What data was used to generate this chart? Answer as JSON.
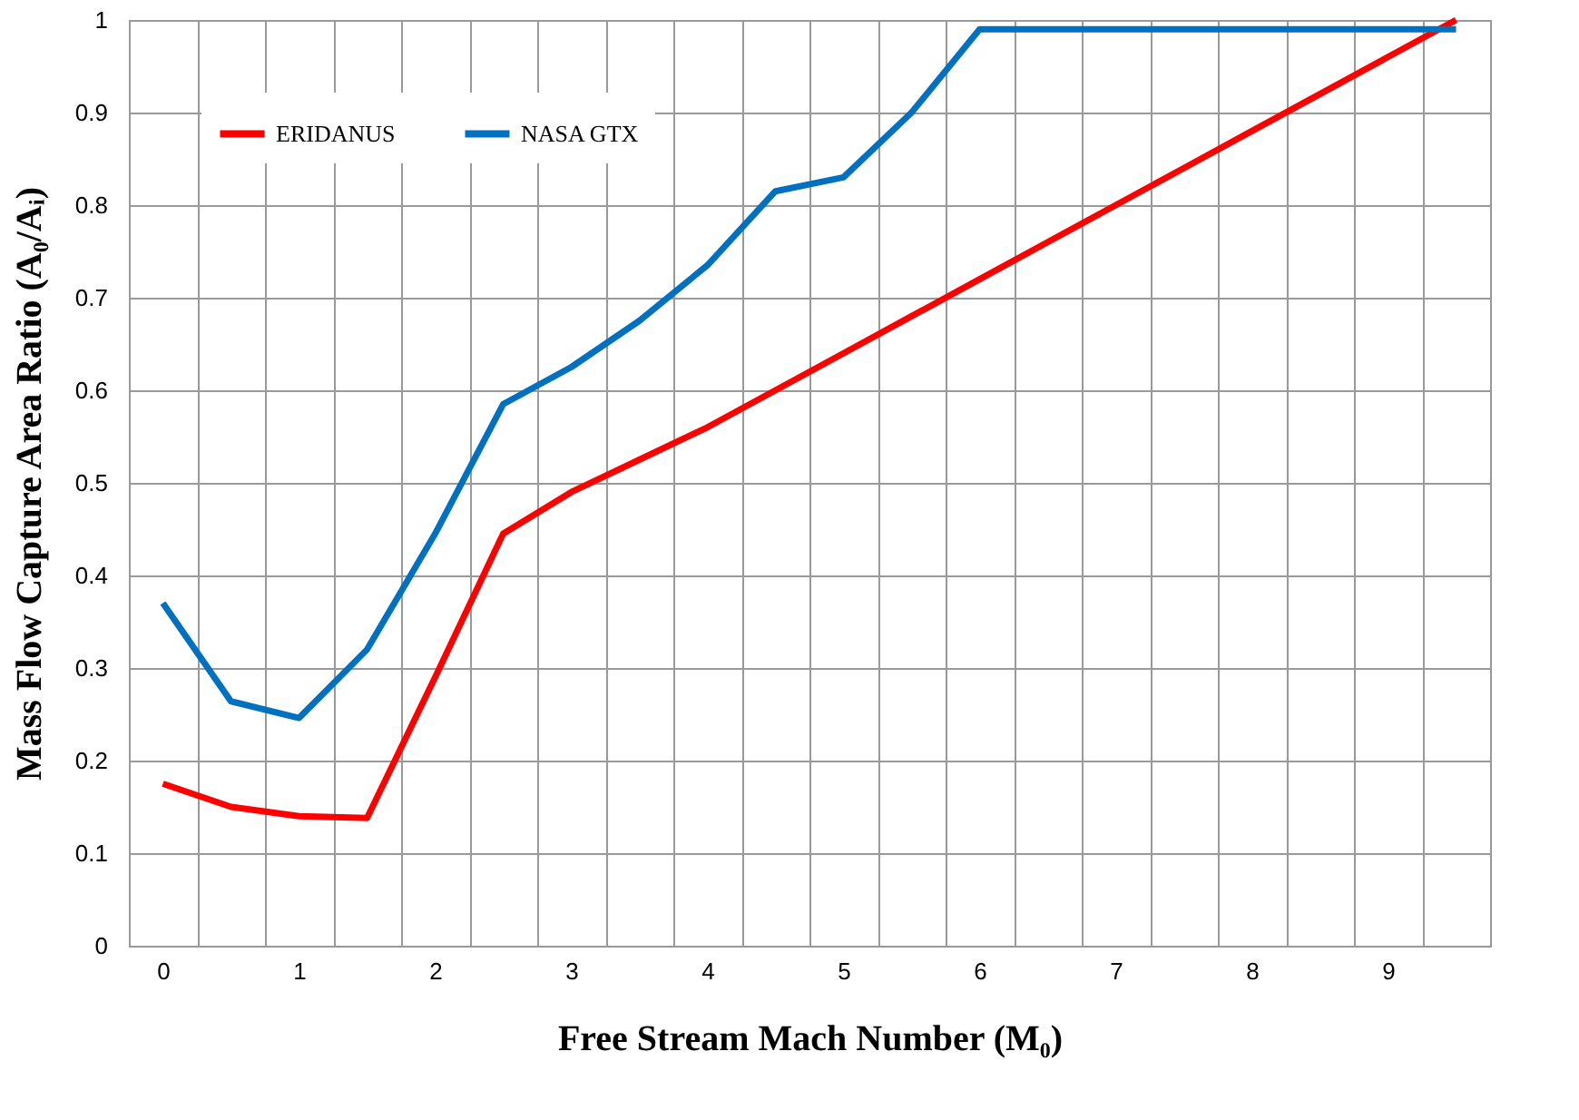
{
  "chart_data": {
    "type": "line",
    "xlabel": "Free Stream Mach Number (M₀)",
    "ylabel": "Mass Flow Capture Area Ratio  (A₀/Aᵢ)",
    "categories": [
      "0",
      null,
      "1",
      null,
      "2",
      null,
      "3",
      null,
      "4",
      null,
      "5",
      null,
      "6",
      null,
      "7",
      null,
      "8",
      null,
      "9",
      null
    ],
    "series": [
      {
        "name": "ERIDANUS",
        "color": "#ff0000",
        "values": [
          0.175,
          0.15,
          0.14,
          0.138,
          0.29,
          0.445,
          0.49,
          0.525,
          0.56,
          0.6,
          0.64,
          0.68,
          0.72,
          0.76,
          0.8,
          0.84,
          0.88,
          0.92,
          0.96,
          1.0
        ]
      },
      {
        "name": "NASA GTX",
        "color": "#0070c0",
        "values": [
          0.37,
          0.264,
          0.246,
          0.32,
          0.445,
          0.585,
          0.625,
          0.675,
          0.735,
          0.815,
          0.83,
          0.9,
          0.99,
          0.99,
          0.99,
          0.99,
          0.99,
          0.99,
          0.99,
          0.99
        ]
      }
    ],
    "ylim": [
      0,
      1
    ],
    "yticks": [
      0,
      0.1,
      0.2,
      0.3,
      0.4,
      0.5,
      0.6,
      0.7,
      0.8,
      0.9,
      1
    ],
    "grid": true,
    "legend": "top left",
    "marker": "none",
    "line_style": "solid"
  }
}
